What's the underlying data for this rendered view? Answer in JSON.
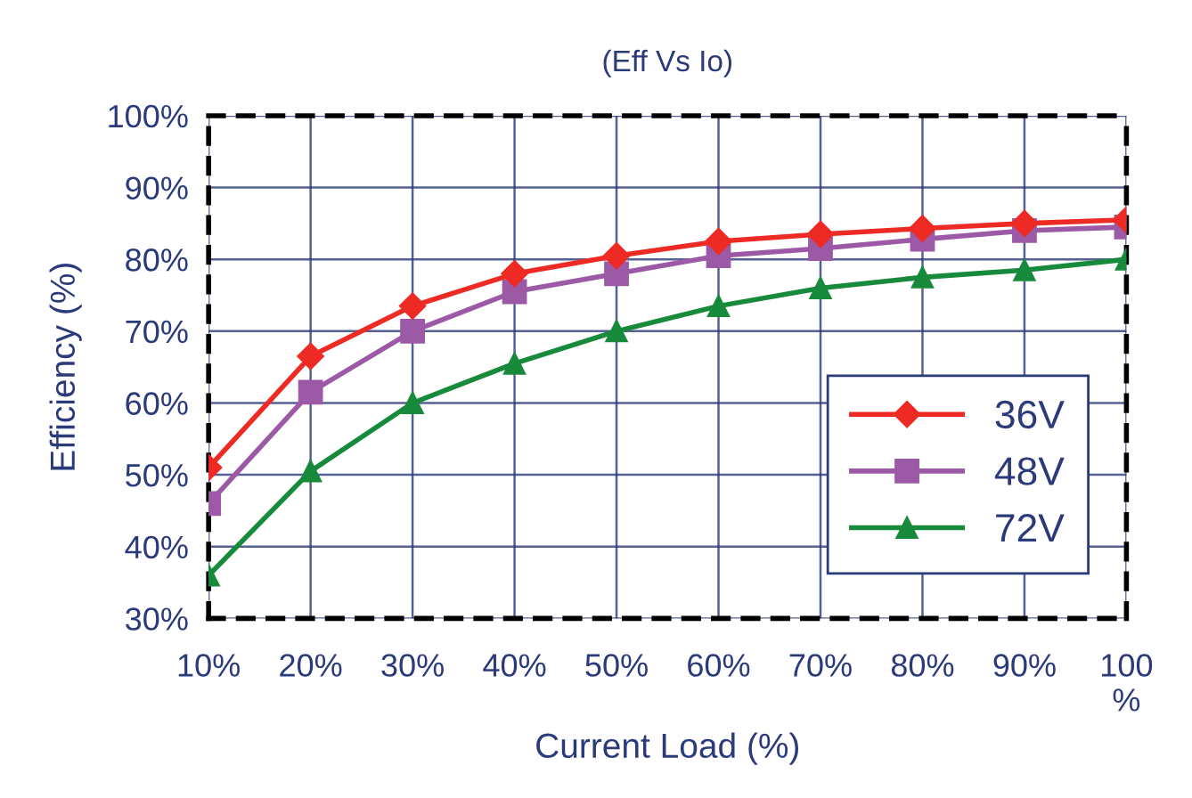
{
  "chart_data": {
    "type": "line",
    "title": "(Eff Vs Io)",
    "xlabel": "Current Load (%)",
    "ylabel": "Efficiency (%)",
    "x": [
      10,
      20,
      30,
      40,
      50,
      60,
      70,
      80,
      90,
      100
    ],
    "series": [
      {
        "name": "36V",
        "color": "#ee2a24",
        "marker": "diamond",
        "values": [
          51,
          66.5,
          73.5,
          78,
          80.5,
          82.5,
          83.5,
          84.3,
          85,
          85.5
        ]
      },
      {
        "name": "48V",
        "color": "#9b59a6",
        "marker": "square",
        "values": [
          46,
          61.5,
          70,
          75.5,
          78,
          80.5,
          81.5,
          82.8,
          84,
          84.5
        ]
      },
      {
        "name": "72V",
        "color": "#178a3c",
        "marker": "triangle",
        "values": [
          36,
          50.5,
          60,
          65.5,
          70,
          73.5,
          76,
          77.5,
          78.5,
          80
        ]
      }
    ],
    "xlim": [
      10,
      100
    ],
    "ylim": [
      30,
      100
    ],
    "xticks": [
      {
        "value": 10,
        "label": "10%"
      },
      {
        "value": 20,
        "label": "20%"
      },
      {
        "value": 30,
        "label": "30%"
      },
      {
        "value": 40,
        "label": "40%"
      },
      {
        "value": 50,
        "label": "50%"
      },
      {
        "value": 60,
        "label": "60%"
      },
      {
        "value": 70,
        "label": "70%"
      },
      {
        "value": 80,
        "label": "80%"
      },
      {
        "value": 90,
        "label": "90%"
      },
      {
        "value": 100,
        "label": "100\n%"
      }
    ],
    "yticks": [
      {
        "value": 30,
        "label": "30%"
      },
      {
        "value": 40,
        "label": "40%"
      },
      {
        "value": 50,
        "label": "50%"
      },
      {
        "value": 60,
        "label": "60%"
      },
      {
        "value": 70,
        "label": "70%"
      },
      {
        "value": 80,
        "label": "80%"
      },
      {
        "value": 90,
        "label": "90%"
      },
      {
        "value": 100,
        "label": "100%"
      }
    ],
    "grid": true,
    "legend": "bottom right",
    "line_style": "solid"
  }
}
